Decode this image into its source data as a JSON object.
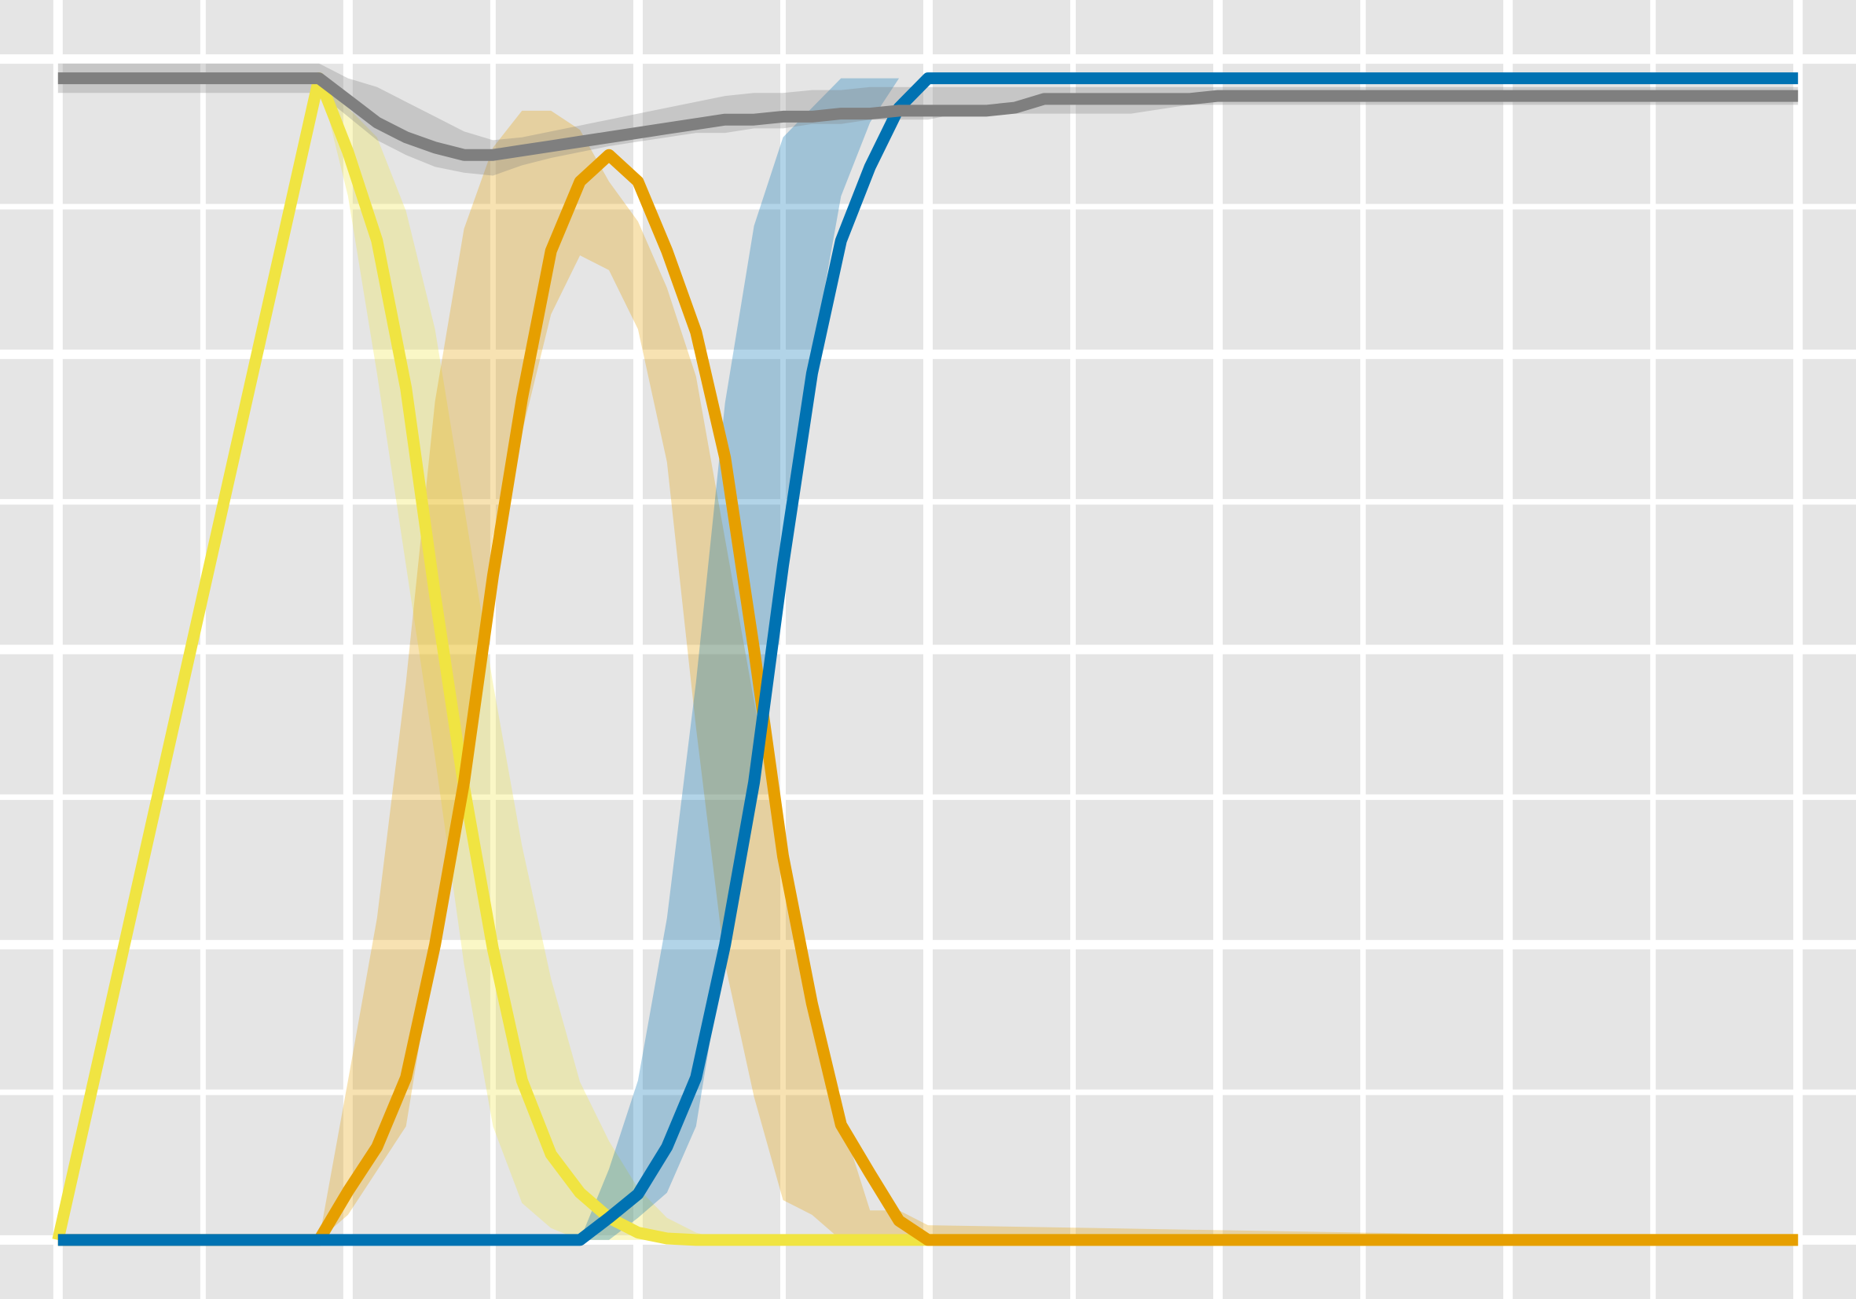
{
  "chart_data": {
    "type": "line",
    "title": "",
    "xlabel": "",
    "ylabel": "",
    "xlim": [
      -0.2,
      6.2
    ],
    "ylim": [
      -0.04,
      0.84
    ],
    "grid": true,
    "colors": {
      "background": "#e5e5e5",
      "grid": "#ffffff",
      "gray": "#7f7f7f",
      "yellow": "#f0e442",
      "orange": "#e69f00",
      "blue": "#0072b2"
    },
    "series": [
      {
        "color": "#f0e442",
        "x": [
          0,
          0.9,
          1.0,
          1.1,
          1.2,
          1.3,
          1.4,
          1.5,
          1.6,
          1.7,
          1.8,
          1.9,
          2.0,
          2.1,
          2.2,
          2.3,
          2.4,
          2.5,
          2.6,
          2.7,
          2.8,
          2.9,
          3.0,
          6.0
        ],
        "y": [
          0.0,
          0.787,
          0.737,
          0.677,
          0.577,
          0.437,
          0.307,
          0.197,
          0.108,
          0.058,
          0.032,
          0.015,
          0.005,
          0.001,
          0.0,
          0.0,
          0.0,
          0.0,
          0.0,
          0.0,
          0.0,
          0.0,
          0.0,
          0.0
        ],
        "band_upper": [
          0.0,
          0.787,
          0.767,
          0.747,
          0.697,
          0.617,
          0.497,
          0.377,
          0.267,
          0.177,
          0.107,
          0.067,
          0.035,
          0.015,
          0.005,
          0.0,
          0.0,
          0.0,
          0.0,
          0.0,
          0.0,
          0.0,
          0.0,
          0.0
        ],
        "band_lower": [
          0.0,
          0.787,
          0.707,
          0.587,
          0.457,
          0.327,
          0.187,
          0.077,
          0.025,
          0.008,
          0.0,
          0.0,
          0.0,
          0.0,
          0.0,
          0.0,
          0.0,
          0.0,
          0.0,
          0.0,
          0.0,
          0.0,
          0.0,
          0.0
        ]
      },
      {
        "color": "#e69f00",
        "x": [
          0,
          0.9,
          1.0,
          1.1,
          1.2,
          1.3,
          1.4,
          1.5,
          1.6,
          1.7,
          1.8,
          1.9,
          2.0,
          2.1,
          2.2,
          2.3,
          2.4,
          2.5,
          2.6,
          2.7,
          2.8,
          2.9,
          3.0,
          6.0
        ],
        "y": [
          0.0,
          0.0,
          0.033,
          0.063,
          0.11,
          0.2,
          0.31,
          0.45,
          0.57,
          0.67,
          0.717,
          0.735,
          0.717,
          0.67,
          0.615,
          0.53,
          0.4,
          0.26,
          0.16,
          0.078,
          0.045,
          0.013,
          0.0,
          0.0
        ],
        "band_upper": [
          0.0,
          0.0,
          0.108,
          0.218,
          0.378,
          0.568,
          0.685,
          0.74,
          0.765,
          0.765,
          0.752,
          0.717,
          0.69,
          0.645,
          0.585,
          0.475,
          0.365,
          0.26,
          0.147,
          0.082,
          0.02,
          0.02,
          0.01,
          0.0
        ],
        "band_lower": [
          0.0,
          0.0,
          0.017,
          0.047,
          0.077,
          0.197,
          0.337,
          0.477,
          0.547,
          0.627,
          0.667,
          0.657,
          0.617,
          0.527,
          0.347,
          0.187,
          0.097,
          0.027,
          0.017,
          0.0,
          0.0,
          0.0,
          0.0,
          0.0
        ]
      },
      {
        "color": "#0072b2",
        "x": [
          0,
          1.8,
          1.9,
          2.0,
          2.1,
          2.2,
          2.3,
          2.4,
          2.5,
          2.6,
          2.7,
          2.8,
          2.9,
          3.0,
          3.1,
          6.0
        ],
        "y": [
          0.0,
          0.0,
          0.015,
          0.031,
          0.063,
          0.11,
          0.2,
          0.31,
          0.457,
          0.587,
          0.677,
          0.727,
          0.767,
          0.787,
          0.787,
          0.787
        ],
        "band_upper": [
          0.0,
          0.0,
          0.048,
          0.108,
          0.218,
          0.378,
          0.567,
          0.687,
          0.747,
          0.767,
          0.787,
          0.787,
          0.787,
          0.787,
          0.787,
          0.787
        ],
        "band_lower": [
          0.0,
          0.0,
          0.0,
          0.015,
          0.032,
          0.077,
          0.197,
          0.337,
          0.477,
          0.597,
          0.707,
          0.757,
          0.787,
          0.787,
          0.787,
          0.787
        ]
      },
      {
        "color": "#7f7f7f",
        "x": [
          0,
          0.9,
          1.0,
          1.1,
          1.2,
          1.3,
          1.4,
          1.5,
          1.6,
          1.7,
          1.8,
          1.9,
          2.0,
          2.1,
          2.2,
          2.3,
          2.4,
          2.5,
          2.6,
          2.7,
          2.8,
          2.9,
          3.0,
          3.1,
          3.2,
          3.3,
          3.4,
          3.5,
          3.6,
          3.7,
          3.8,
          3.9,
          4.0,
          6.0
        ],
        "y": [
          0.787,
          0.787,
          0.772,
          0.757,
          0.747,
          0.74,
          0.735,
          0.735,
          0.738,
          0.741,
          0.744,
          0.747,
          0.75,
          0.753,
          0.756,
          0.759,
          0.759,
          0.761,
          0.761,
          0.763,
          0.763,
          0.765,
          0.765,
          0.765,
          0.765,
          0.767,
          0.773,
          0.773,
          0.773,
          0.773,
          0.773,
          0.773,
          0.775,
          0.775
        ],
        "band_upper": [
          0.797,
          0.797,
          0.787,
          0.781,
          0.771,
          0.761,
          0.751,
          0.745,
          0.747,
          0.751,
          0.755,
          0.759,
          0.763,
          0.767,
          0.771,
          0.775,
          0.777,
          0.777,
          0.779,
          0.779,
          0.781,
          0.781,
          0.781,
          0.781,
          0.781,
          0.781,
          0.781,
          0.781,
          0.781,
          0.781,
          0.781,
          0.781,
          0.781,
          0.781
        ],
        "band_lower": [
          0.777,
          0.777,
          0.761,
          0.745,
          0.735,
          0.727,
          0.723,
          0.721,
          0.728,
          0.733,
          0.737,
          0.741,
          0.744,
          0.747,
          0.75,
          0.75,
          0.753,
          0.753,
          0.756,
          0.756,
          0.759,
          0.759,
          0.759,
          0.763,
          0.763,
          0.763,
          0.763,
          0.763,
          0.763,
          0.763,
          0.766,
          0.769,
          0.769,
          0.769
        ]
      }
    ]
  }
}
